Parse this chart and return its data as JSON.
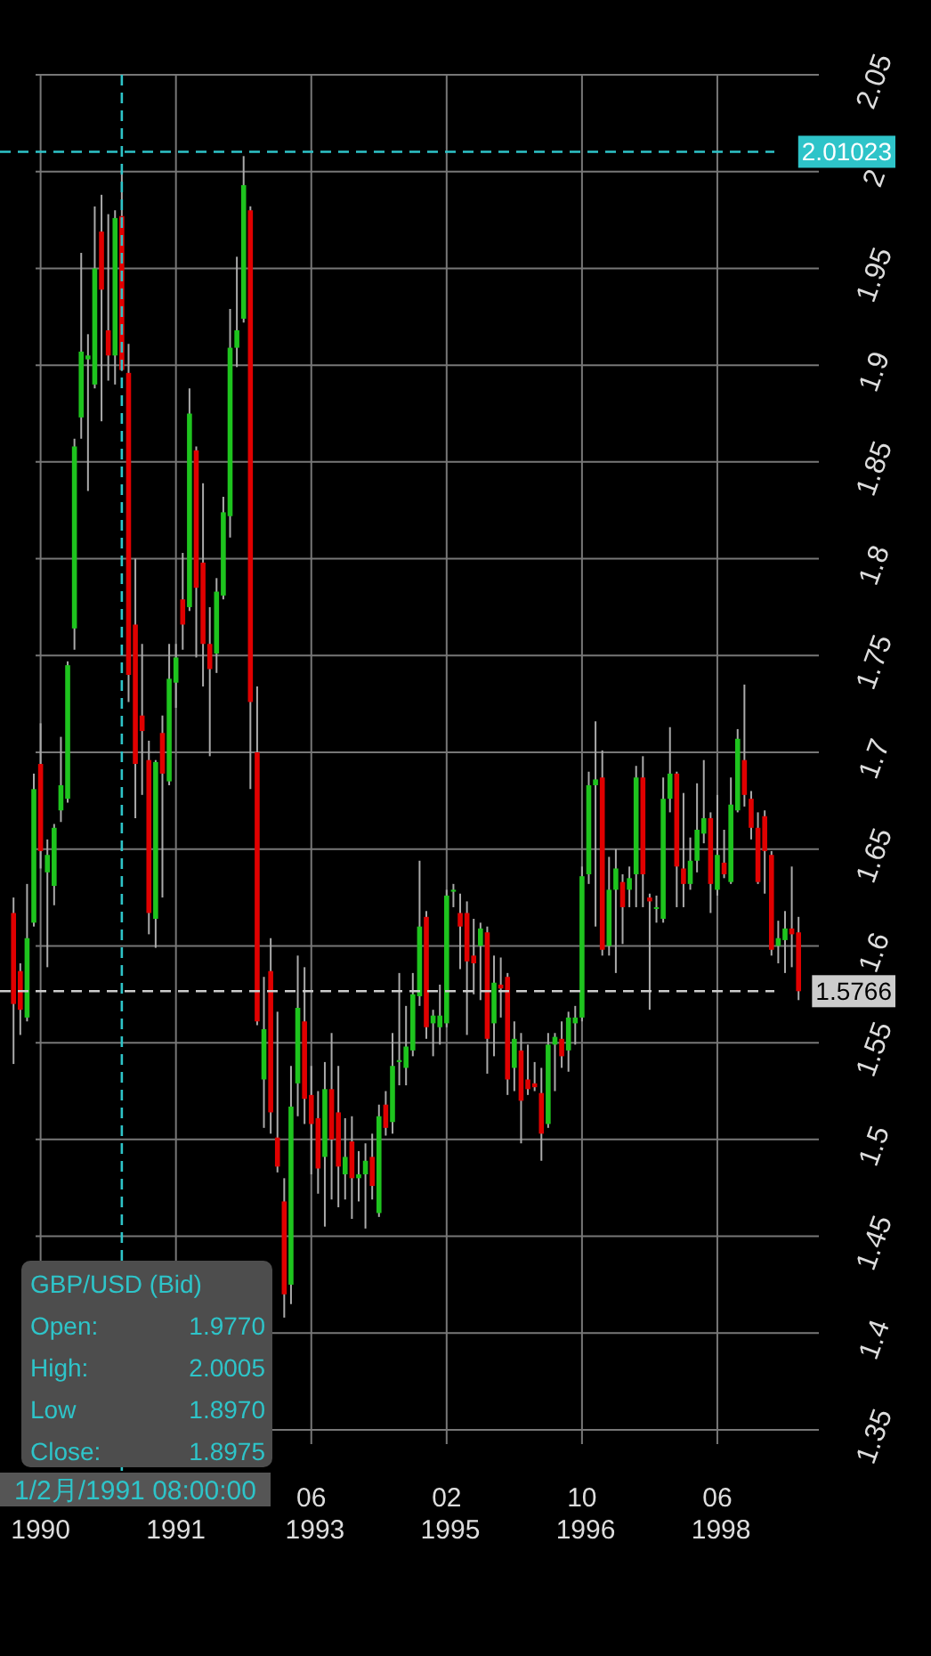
{
  "chart_data": {
    "type": "candlestick",
    "x": [
      "1989-10",
      "1989-11",
      "1989-12",
      "1990-01",
      "1990-02",
      "1990-03",
      "1990-04",
      "1990-05",
      "1990-06",
      "1990-07",
      "1990-08",
      "1990-09",
      "1990-10",
      "1990-11",
      "1990-12",
      "1991-01",
      "1991-02",
      "1991-03",
      "1991-04",
      "1991-05",
      "1991-06",
      "1991-07",
      "1991-08",
      "1991-09",
      "1991-10",
      "1991-11",
      "1991-12",
      "1992-01",
      "1992-02",
      "1992-03",
      "1992-04",
      "1992-05",
      "1992-06",
      "1992-07",
      "1992-08",
      "1992-09",
      "1992-10",
      "1992-11",
      "1992-12",
      "1993-01",
      "1993-02",
      "1993-03",
      "1993-04",
      "1993-05",
      "1993-06",
      "1993-07",
      "1993-08",
      "1993-09",
      "1993-10",
      "1993-11",
      "1993-12",
      "1994-01",
      "1994-02",
      "1994-03",
      "1994-04",
      "1994-05",
      "1994-06",
      "1994-07",
      "1994-08",
      "1994-09",
      "1994-10",
      "1994-11",
      "1994-12",
      "1995-01",
      "1995-02",
      "1995-03",
      "1995-04",
      "1995-05",
      "1995-06",
      "1995-07",
      "1995-08",
      "1995-09",
      "1995-10",
      "1995-11",
      "1995-12",
      "1996-01",
      "1996-02",
      "1996-03",
      "1996-04",
      "1996-05",
      "1996-06",
      "1996-07",
      "1996-08",
      "1996-09",
      "1996-10",
      "1996-11",
      "1996-12",
      "1997-01",
      "1997-02",
      "1997-03",
      "1997-04",
      "1997-05",
      "1997-06",
      "1997-07",
      "1997-08",
      "1997-09",
      "1997-10",
      "1997-11",
      "1997-12",
      "1998-01",
      "1998-02",
      "1998-03",
      "1998-04",
      "1998-05",
      "1998-06",
      "1998-07",
      "1998-08",
      "1998-09",
      "1998-10",
      "1998-11",
      "1998-12",
      "1999-01",
      "1999-02",
      "1999-03",
      "1999-04",
      "1999-05",
      "1999-06"
    ],
    "ohlc": [
      [
        1.617,
        1.625,
        1.539,
        1.57
      ],
      [
        1.587,
        1.591,
        1.554,
        1.567
      ],
      [
        1.563,
        1.632,
        1.561,
        1.604
      ],
      [
        1.612,
        1.689,
        1.61,
        1.681
      ],
      [
        1.694,
        1.715,
        1.64,
        1.649
      ],
      [
        1.638,
        1.655,
        1.589,
        1.647
      ],
      [
        1.631,
        1.663,
        1.621,
        1.661
      ],
      [
        1.67,
        1.708,
        1.664,
        1.683
      ],
      [
        1.676,
        1.747,
        1.674,
        1.745
      ],
      [
        1.764,
        1.862,
        1.753,
        1.858
      ],
      [
        1.873,
        1.958,
        1.862,
        1.907
      ],
      [
        1.903,
        1.916,
        1.835,
        1.905
      ],
      [
        1.89,
        1.982,
        1.888,
        1.95
      ],
      [
        1.969,
        1.988,
        1.871,
        1.939
      ],
      [
        1.918,
        1.978,
        1.892,
        1.905
      ],
      [
        1.905,
        1.98,
        1.89,
        1.976
      ],
      [
        1.977,
        2.0005,
        1.897,
        1.8975
      ],
      [
        1.896,
        1.911,
        1.726,
        1.74
      ],
      [
        1.766,
        1.8,
        1.666,
        1.694
      ],
      [
        1.719,
        1.756,
        1.678,
        1.711
      ],
      [
        1.696,
        1.706,
        1.606,
        1.617
      ],
      [
        1.614,
        1.696,
        1.599,
        1.695
      ],
      [
        1.71,
        1.719,
        1.625,
        1.689
      ],
      [
        1.685,
        1.756,
        1.683,
        1.738
      ],
      [
        1.736,
        1.756,
        1.723,
        1.749
      ],
      [
        1.779,
        1.803,
        1.753,
        1.766
      ],
      [
        1.775,
        1.888,
        1.773,
        1.875
      ],
      [
        1.856,
        1.858,
        1.749,
        1.785
      ],
      [
        1.798,
        1.839,
        1.734,
        1.756
      ],
      [
        1.756,
        1.775,
        1.698,
        1.743
      ],
      [
        1.751,
        1.79,
        1.741,
        1.783
      ],
      [
        1.781,
        1.832,
        1.779,
        1.824
      ],
      [
        1.822,
        1.929,
        1.811,
        1.909
      ],
      [
        1.909,
        1.956,
        1.899,
        1.918
      ],
      [
        1.924,
        2.008,
        1.922,
        1.993
      ],
      [
        1.98,
        1.982,
        1.681,
        1.726
      ],
      [
        1.7,
        1.734,
        1.559,
        1.561
      ],
      [
        1.531,
        1.584,
        1.506,
        1.557
      ],
      [
        1.587,
        1.604,
        1.503,
        1.514
      ],
      [
        1.501,
        1.566,
        1.483,
        1.486
      ],
      [
        1.468,
        1.48,
        1.408,
        1.42
      ],
      [
        1.425,
        1.538,
        1.415,
        1.517
      ],
      [
        1.529,
        1.595,
        1.512,
        1.568
      ],
      [
        1.561,
        1.589,
        1.508,
        1.521
      ],
      [
        1.523,
        1.538,
        1.482,
        1.508
      ],
      [
        1.511,
        1.525,
        1.472,
        1.485
      ],
      [
        1.491,
        1.54,
        1.455,
        1.526
      ],
      [
        1.526,
        1.555,
        1.469,
        1.5
      ],
      [
        1.514,
        1.538,
        1.465,
        1.486
      ],
      [
        1.482,
        1.511,
        1.469,
        1.491
      ],
      [
        1.499,
        1.512,
        1.459,
        1.48
      ],
      [
        1.48,
        1.494,
        1.468,
        1.482
      ],
      [
        1.482,
        1.498,
        1.454,
        1.489
      ],
      [
        1.491,
        1.503,
        1.469,
        1.476
      ],
      [
        1.462,
        1.518,
        1.46,
        1.512
      ],
      [
        1.518,
        1.525,
        1.502,
        1.506
      ],
      [
        1.509,
        1.555,
        1.503,
        1.538
      ],
      [
        1.54,
        1.586,
        1.528,
        1.541
      ],
      [
        1.537,
        1.569,
        1.528,
        1.548
      ],
      [
        1.546,
        1.586,
        1.543,
        1.575
      ],
      [
        1.574,
        1.644,
        1.569,
        1.61
      ],
      [
        1.615,
        1.618,
        1.552,
        1.558
      ],
      [
        1.56,
        1.567,
        1.543,
        1.564
      ],
      [
        1.558,
        1.58,
        1.549,
        1.564
      ],
      [
        1.56,
        1.629,
        1.558,
        1.626
      ],
      [
        1.628,
        1.632,
        1.62,
        1.629
      ],
      [
        1.617,
        1.627,
        1.588,
        1.61
      ],
      [
        1.617,
        1.623,
        1.554,
        1.592
      ],
      [
        1.595,
        1.614,
        1.575,
        1.591
      ],
      [
        1.6,
        1.612,
        1.572,
        1.609
      ],
      [
        1.607,
        1.61,
        1.534,
        1.552
      ],
      [
        1.56,
        1.595,
        1.543,
        1.581
      ],
      [
        1.58,
        1.594,
        1.563,
        1.578
      ],
      [
        1.584,
        1.586,
        1.523,
        1.531
      ],
      [
        1.537,
        1.561,
        1.525,
        1.552
      ],
      [
        1.546,
        1.555,
        1.498,
        1.52
      ],
      [
        1.531,
        1.549,
        1.523,
        1.526
      ],
      [
        1.529,
        1.54,
        1.525,
        1.527
      ],
      [
        1.524,
        1.537,
        1.489,
        1.503
      ],
      [
        1.508,
        1.555,
        1.506,
        1.549
      ],
      [
        1.549,
        1.555,
        1.525,
        1.553
      ],
      [
        1.552,
        1.561,
        1.537,
        1.543
      ],
      [
        1.546,
        1.566,
        1.535,
        1.563
      ],
      [
        1.56,
        1.569,
        1.549,
        1.563
      ],
      [
        1.563,
        1.641,
        1.561,
        1.636
      ],
      [
        1.637,
        1.69,
        1.632,
        1.683
      ],
      [
        1.683,
        1.716,
        1.61,
        1.686
      ],
      [
        1.687,
        1.701,
        1.595,
        1.598
      ],
      [
        1.6,
        1.646,
        1.595,
        1.629
      ],
      [
        1.629,
        1.65,
        1.586,
        1.64
      ],
      [
        1.633,
        1.637,
        1.601,
        1.62
      ],
      [
        1.629,
        1.641,
        1.62,
        1.635
      ],
      [
        1.637,
        1.693,
        1.62,
        1.687
      ],
      [
        1.687,
        1.698,
        1.62,
        1.637
      ],
      [
        1.625,
        1.627,
        1.567,
        1.623
      ],
      [
        1.62,
        1.626,
        1.612,
        1.62
      ],
      [
        1.614,
        1.687,
        1.612,
        1.676
      ],
      [
        1.676,
        1.713,
        1.669,
        1.689
      ],
      [
        1.689,
        1.69,
        1.62,
        1.641
      ],
      [
        1.64,
        1.679,
        1.62,
        1.632
      ],
      [
        1.632,
        1.656,
        1.629,
        1.644
      ],
      [
        1.644,
        1.684,
        1.638,
        1.66
      ],
      [
        1.658,
        1.696,
        1.653,
        1.666
      ],
      [
        1.666,
        1.669,
        1.617,
        1.632
      ],
      [
        1.629,
        1.678,
        1.626,
        1.647
      ],
      [
        1.643,
        1.66,
        1.635,
        1.637
      ],
      [
        1.633,
        1.687,
        1.632,
        1.673
      ],
      [
        1.67,
        1.712,
        1.669,
        1.707
      ],
      [
        1.696,
        1.735,
        1.672,
        1.678
      ],
      [
        1.676,
        1.68,
        1.655,
        1.661
      ],
      [
        1.661,
        1.669,
        1.632,
        1.633
      ],
      [
        1.667,
        1.67,
        1.627,
        1.649
      ],
      [
        1.647,
        1.649,
        1.595,
        1.598
      ],
      [
        1.6,
        1.613,
        1.591,
        1.604
      ],
      [
        1.603,
        1.618,
        1.586,
        1.609
      ],
      [
        1.609,
        1.641,
        1.589,
        1.606
      ],
      [
        1.607,
        1.615,
        1.572,
        1.5766
      ]
    ],
    "xlim": [
      "1989-08",
      "1999-09"
    ],
    "xticks": [
      {
        "value": "1990-02",
        "label": "1990"
      },
      {
        "value": "1991-10",
        "label": "1991"
      },
      {
        "value": "1993-06",
        "label": "06 1993"
      },
      {
        "value": "1995-02",
        "label": "02 1995"
      },
      {
        "value": "1996-10",
        "label": "10 1996"
      },
      {
        "value": "1998-06",
        "label": "06 1998"
      }
    ],
    "ylim": [
      1.35,
      2.05
    ],
    "yticks": [
      1.35,
      1.4,
      1.45,
      1.5,
      1.55,
      1.6,
      1.65,
      1.7,
      1.75,
      1.8,
      1.85,
      1.9,
      1.95,
      2,
      2.05
    ],
    "grid": true,
    "ref_lines": [
      {
        "axis": "x",
        "value": "1991-02",
        "label": "1/2月/1991 08:00:00",
        "color": "#2ec4c9",
        "line_style": "dashed"
      },
      {
        "axis": "y",
        "value": 2.01023,
        "label": "2.01023",
        "color": "#2ec4c9",
        "line_style": "dashed"
      },
      {
        "axis": "y",
        "value": 1.5766,
        "label": "1.5766",
        "color": "#cccccc",
        "line_style": "dashed"
      }
    ],
    "annotations": [
      "GBP/USD (Bid)",
      "Open: 1.9770",
      "High: 2.0005",
      "Low 1.8970",
      "Close: 1.8975"
    ]
  }
}
